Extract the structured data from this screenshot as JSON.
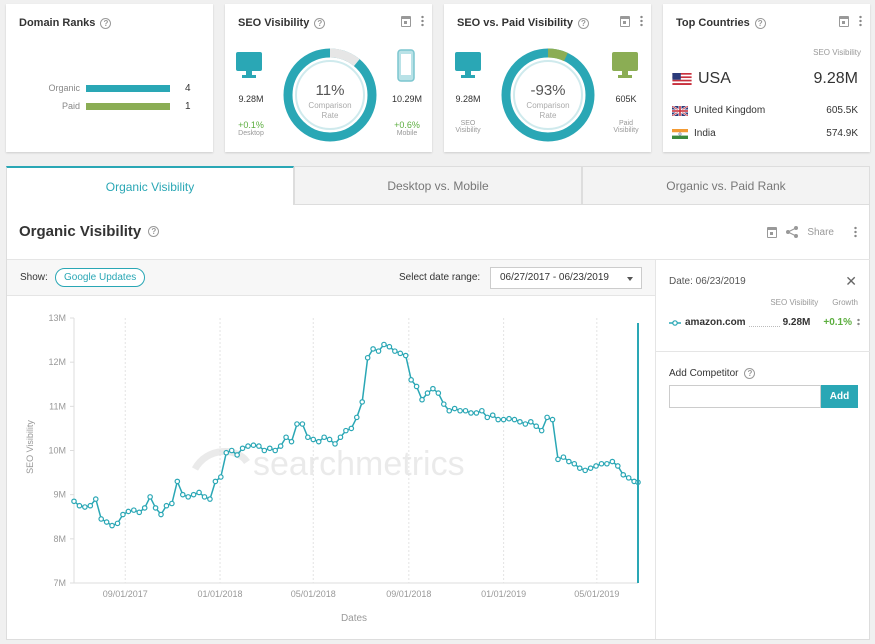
{
  "cards": {
    "domain_ranks": {
      "title": "Domain Ranks",
      "rows": [
        {
          "label": "Organic",
          "value": "4",
          "ratio": 1.0,
          "color": "#2aa7b5"
        },
        {
          "label": "Paid",
          "value": "1",
          "ratio": 1.0,
          "color": "#8bad54"
        }
      ]
    },
    "seo_visibility": {
      "title": "SEO Visibility",
      "percent": "11%",
      "gauge_fraction": 0.11,
      "center_label": "Comparison Rate",
      "left": {
        "value": "9.28M",
        "change": "+0.1%",
        "label": "Desktop"
      },
      "right": {
        "value": "10.29M",
        "change": "+0.6%",
        "label": "Mobile"
      }
    },
    "seo_vs_paid": {
      "title": "SEO vs. Paid Visibility",
      "percent": "-93%",
      "gauge_fraction": 0.07,
      "center_label": "Comparison Rate",
      "left": {
        "value": "9.28M",
        "label": "SEO Visibility"
      },
      "right": {
        "value": "605K",
        "label": "Paid Visibility"
      }
    },
    "top_countries": {
      "title": "Top Countries",
      "subtitle": "SEO Visibility",
      "rows": [
        {
          "name": "USA",
          "value": "9.28M"
        },
        {
          "name": "United Kingdom",
          "value": "605.5K"
        },
        {
          "name": "India",
          "value": "574.9K"
        }
      ]
    }
  },
  "tabs": [
    {
      "label": "Organic Visibility",
      "active": true
    },
    {
      "label": "Desktop vs. Mobile",
      "active": false
    },
    {
      "label": "Organic vs. Paid Rank",
      "active": false
    }
  ],
  "panel": {
    "title": "Organic Visibility",
    "share_label": "Share",
    "show_label": "Show:",
    "updates_button": "Google Updates",
    "range_label": "Select date range:",
    "range_value": "06/27/2017 - 06/23/2019"
  },
  "side": {
    "date_label": "Date: 06/23/2019",
    "col_seo": "SEO Visibility",
    "col_growth": "Growth",
    "domain": "amazon.com",
    "seo_value": "9.28M",
    "growth": "+0.1%",
    "add_label": "Add Competitor",
    "add_input_placeholder": "",
    "add_button": "Add"
  },
  "colors": {
    "accent": "#2aa7b5",
    "green": "#8bad54",
    "positive": "#5cae3f"
  },
  "chart_data": {
    "type": "line",
    "ylabel": "SEO Visibility",
    "xlabel": "Dates",
    "watermark": "searchmetrics",
    "ylim": [
      7,
      13
    ],
    "yticks": [
      "13M",
      "12M",
      "11M",
      "10M",
      "9M",
      "8M",
      "7M"
    ],
    "xticks": [
      "09/01/2017",
      "01/01/2018",
      "05/01/2018",
      "09/01/2018",
      "01/01/2019",
      "05/01/2019"
    ],
    "xtick_dates": [
      "2017-09-01",
      "2018-01-01",
      "2018-05-01",
      "2018-09-01",
      "2019-01-01",
      "2019-05-01"
    ],
    "x_range": [
      "2017-06-27",
      "2019-06-23"
    ],
    "series": [
      {
        "x": [
          "2017-06-27",
          "2017-07-04",
          "2017-07-11",
          "2017-07-18",
          "2017-07-25",
          "2017-08-01",
          "2017-08-08",
          "2017-08-15",
          "2017-08-22",
          "2017-08-29",
          "2017-09-05",
          "2017-09-12",
          "2017-09-19",
          "2017-09-26",
          "2017-10-03",
          "2017-10-10",
          "2017-10-17",
          "2017-10-24",
          "2017-10-31",
          "2017-11-07",
          "2017-11-14",
          "2017-11-21",
          "2017-11-28",
          "2017-12-05",
          "2017-12-12",
          "2017-12-19",
          "2017-12-26",
          "2018-01-02",
          "2018-01-09",
          "2018-01-16",
          "2018-01-23",
          "2018-01-30",
          "2018-02-06",
          "2018-02-13",
          "2018-02-20",
          "2018-02-27",
          "2018-03-06",
          "2018-03-13",
          "2018-03-20",
          "2018-03-27",
          "2018-04-03",
          "2018-04-10",
          "2018-04-17",
          "2018-04-24",
          "2018-05-01",
          "2018-05-08",
          "2018-05-15",
          "2018-05-22",
          "2018-05-29",
          "2018-06-05",
          "2018-06-12",
          "2018-06-19",
          "2018-06-26",
          "2018-07-03",
          "2018-07-10",
          "2018-07-17",
          "2018-07-24",
          "2018-07-31",
          "2018-08-07",
          "2018-08-14",
          "2018-08-21",
          "2018-08-28",
          "2018-09-04",
          "2018-09-11",
          "2018-09-18",
          "2018-09-25",
          "2018-10-02",
          "2018-10-09",
          "2018-10-16",
          "2018-10-23",
          "2018-10-30",
          "2018-11-06",
          "2018-11-13",
          "2018-11-20",
          "2018-11-27",
          "2018-12-04",
          "2018-12-11",
          "2018-12-18",
          "2018-12-25",
          "2019-01-01",
          "2019-01-08",
          "2019-01-15",
          "2019-01-22",
          "2019-01-29",
          "2019-02-05",
          "2019-02-12",
          "2019-02-19",
          "2019-02-26",
          "2019-03-05",
          "2019-03-12",
          "2019-03-19",
          "2019-03-26",
          "2019-04-02",
          "2019-04-09",
          "2019-04-16",
          "2019-04-23",
          "2019-04-30",
          "2019-05-07",
          "2019-05-14",
          "2019-05-21",
          "2019-05-28",
          "2019-06-04",
          "2019-06-11",
          "2019-06-18",
          "2019-06-23"
        ],
        "y": [
          8.85,
          8.75,
          8.72,
          8.75,
          8.9,
          8.45,
          8.38,
          8.3,
          8.35,
          8.55,
          8.62,
          8.65,
          8.6,
          8.7,
          8.95,
          8.7,
          8.55,
          8.75,
          8.8,
          9.3,
          9.0,
          8.95,
          9.0,
          9.05,
          8.95,
          8.9,
          9.3,
          9.4,
          9.95,
          10.0,
          9.9,
          10.05,
          10.1,
          10.12,
          10.1,
          10.0,
          10.05,
          10.0,
          10.1,
          10.3,
          10.2,
          10.6,
          10.6,
          10.3,
          10.25,
          10.2,
          10.3,
          10.25,
          10.15,
          10.3,
          10.45,
          10.5,
          10.75,
          11.1,
          12.1,
          12.3,
          12.25,
          12.4,
          12.35,
          12.25,
          12.2,
          12.15,
          11.6,
          11.45,
          11.15,
          11.3,
          11.4,
          11.3,
          11.05,
          10.9,
          10.95,
          10.9,
          10.9,
          10.85,
          10.85,
          10.9,
          10.75,
          10.8,
          10.7,
          10.7,
          10.72,
          10.7,
          10.65,
          10.6,
          10.65,
          10.55,
          10.45,
          10.75,
          10.7,
          9.8,
          9.85,
          9.75,
          9.7,
          9.6,
          9.55,
          9.6,
          9.65,
          9.7,
          9.7,
          9.75,
          9.65,
          9.45,
          9.38,
          9.3,
          9.28
        ]
      }
    ]
  }
}
